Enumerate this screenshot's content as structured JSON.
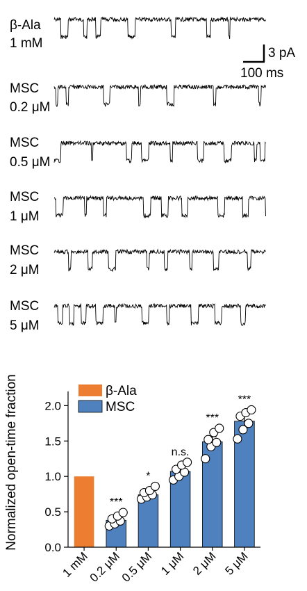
{
  "traces": [
    {
      "name": "β-Ala",
      "concentration": "1 mM"
    },
    {
      "name": "MSC",
      "concentration": "0.2 μM"
    },
    {
      "name": "MSC",
      "concentration": "0.5 μM"
    },
    {
      "name": "MSC",
      "concentration": "1 μM"
    },
    {
      "name": "MSC",
      "concentration": "2 μM"
    },
    {
      "name": "MSC",
      "concentration": "5 μM"
    }
  ],
  "scale_bar": {
    "current": "3 pA",
    "time": "100 ms"
  },
  "colors": {
    "beta_ala": "#ed7d31",
    "msc": "#4e81bd"
  },
  "chart_data": {
    "type": "bar",
    "ylabel": "Normalized open-time fraction",
    "ylim": [
      0,
      2.2
    ],
    "yticks": [
      "0.0",
      "0.5",
      "1.0",
      "1.5",
      "2.0"
    ],
    "legend": [
      "β-Ala",
      "MSC"
    ],
    "legend_position": "top-left",
    "categories": [
      "1 mM",
      "0.2 μM",
      "0.5 μM",
      "1 μM",
      "2 μM",
      "5 μM"
    ],
    "series": [
      {
        "name": "β-Ala",
        "values": [
          1.0,
          null,
          null,
          null,
          null,
          null
        ]
      },
      {
        "name": "MSC",
        "values": [
          null,
          0.38,
          0.74,
          1.07,
          1.49,
          1.78
        ]
      }
    ],
    "error": [
      0,
      0.05,
      0.04,
      0.06,
      0.07,
      0.09
    ],
    "points": [
      [],
      [
        0.3,
        0.33,
        0.37,
        0.4,
        0.44,
        0.49
      ],
      [
        0.68,
        0.71,
        0.74,
        0.77,
        0.8,
        0.86
      ],
      [
        0.95,
        1.0,
        1.06,
        1.1,
        1.16,
        1.2
      ],
      [
        1.25,
        1.42,
        1.48,
        1.52,
        1.62,
        1.68
      ],
      [
        1.53,
        1.66,
        1.75,
        1.85,
        1.9,
        1.94
      ]
    ],
    "significance": [
      "",
      "***",
      "*",
      "n.s.",
      "***",
      "***"
    ]
  }
}
